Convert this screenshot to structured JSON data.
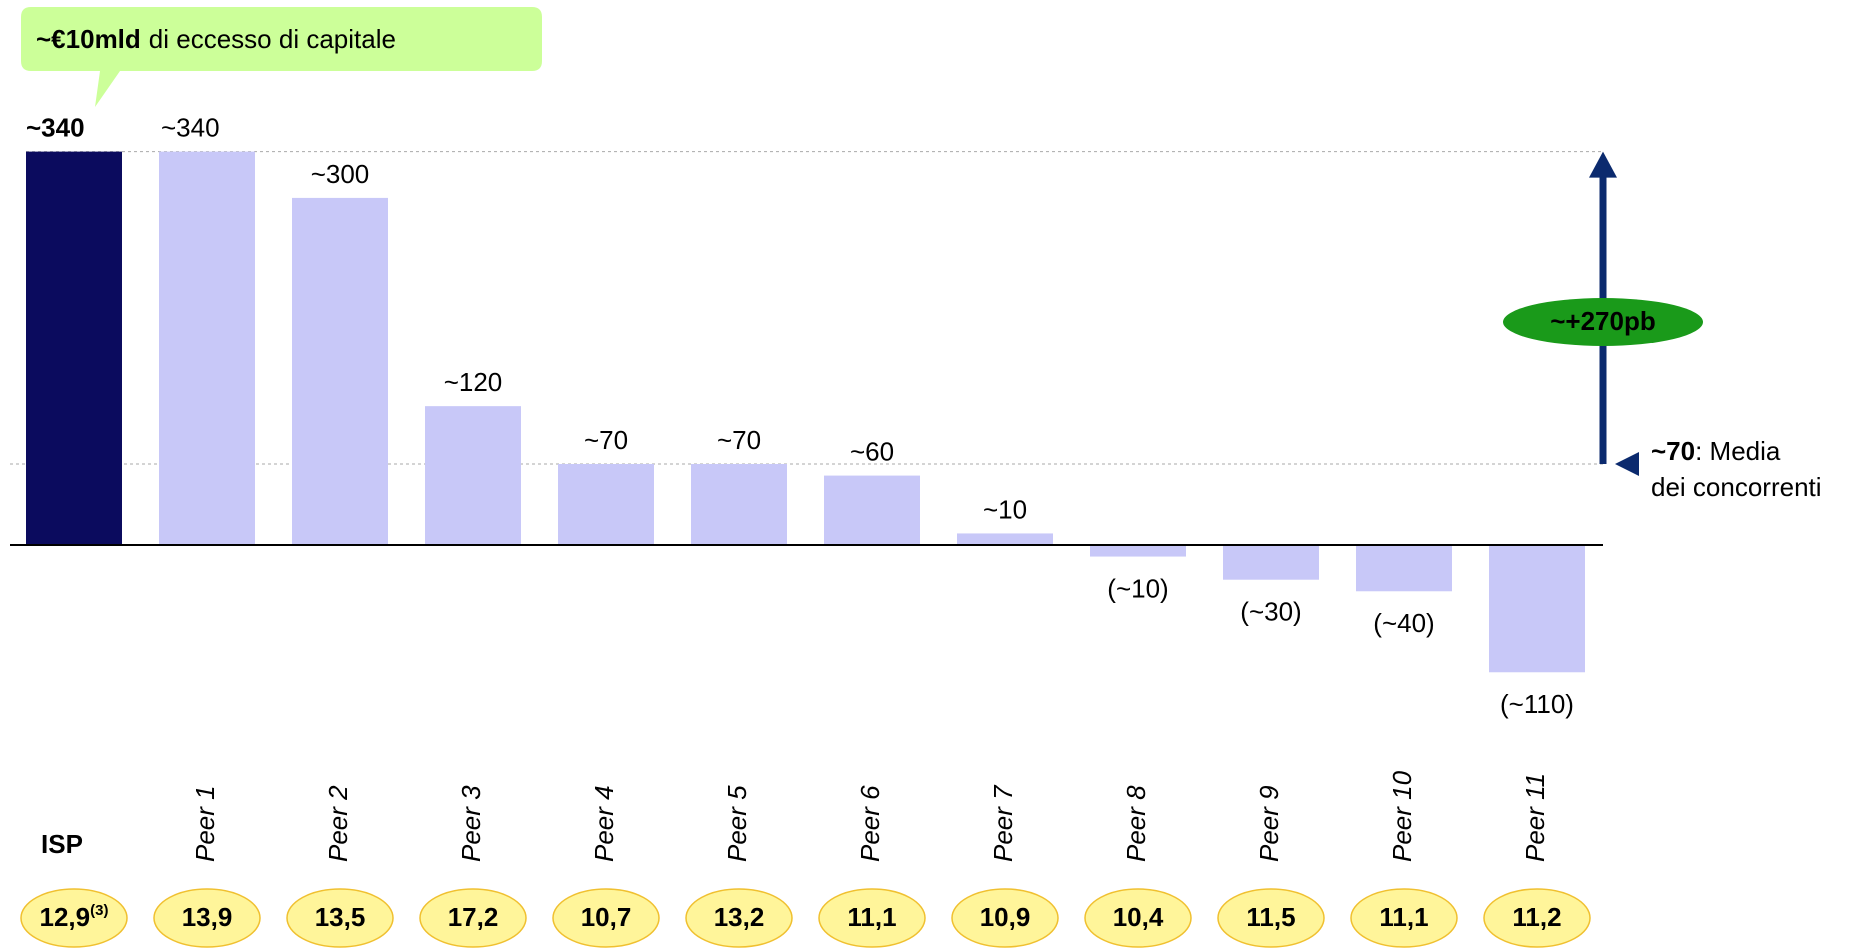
{
  "chart_data": {
    "type": "bar",
    "categories": [
      "ISP",
      "Peer 1",
      "Peer 2",
      "Peer 3",
      "Peer 4",
      "Peer 5",
      "Peer 6",
      "Peer 7",
      "Peer 8",
      "Peer 9",
      "Peer 10",
      "Peer 11"
    ],
    "values": [
      340,
      340,
      300,
      120,
      70,
      70,
      60,
      10,
      -10,
      -30,
      -40,
      -110
    ],
    "value_labels": [
      "~340",
      "~340",
      "~300",
      "~120",
      "~70",
      "~70",
      "~60",
      "~10",
      "(~10)",
      "(~30)",
      "(~40)",
      "(~110)"
    ],
    "colors": [
      "#0b0b5e",
      "#c8c8f8",
      "#c8c8f8",
      "#c8c8f8",
      "#c8c8f8",
      "#c8c8f8",
      "#c8c8f8",
      "#c8c8f8",
      "#c8c8f8",
      "#c8c8f8",
      "#c8c8f8",
      "#c8c8f8"
    ],
    "row_values": [
      12.9,
      13.9,
      13.5,
      17.2,
      10.7,
      13.2,
      11.1,
      10.9,
      10.4,
      11.5,
      11.1,
      11.2
    ],
    "row_labels": [
      "12,9",
      "13,9",
      "13,5",
      "17,2",
      "10,7",
      "13,2",
      "11,1",
      "10,9",
      "10,4",
      "11,5",
      "11,1",
      "11,2"
    ],
    "isp_note": "(3)",
    "callout": {
      "bold": "~€10mld",
      "text": "di eccesso di capitale"
    },
    "average": 70,
    "average_label": "~70",
    "average_text": [
      ": Media",
      "dei concorrenti"
    ],
    "gap_label": "~+270pb"
  }
}
